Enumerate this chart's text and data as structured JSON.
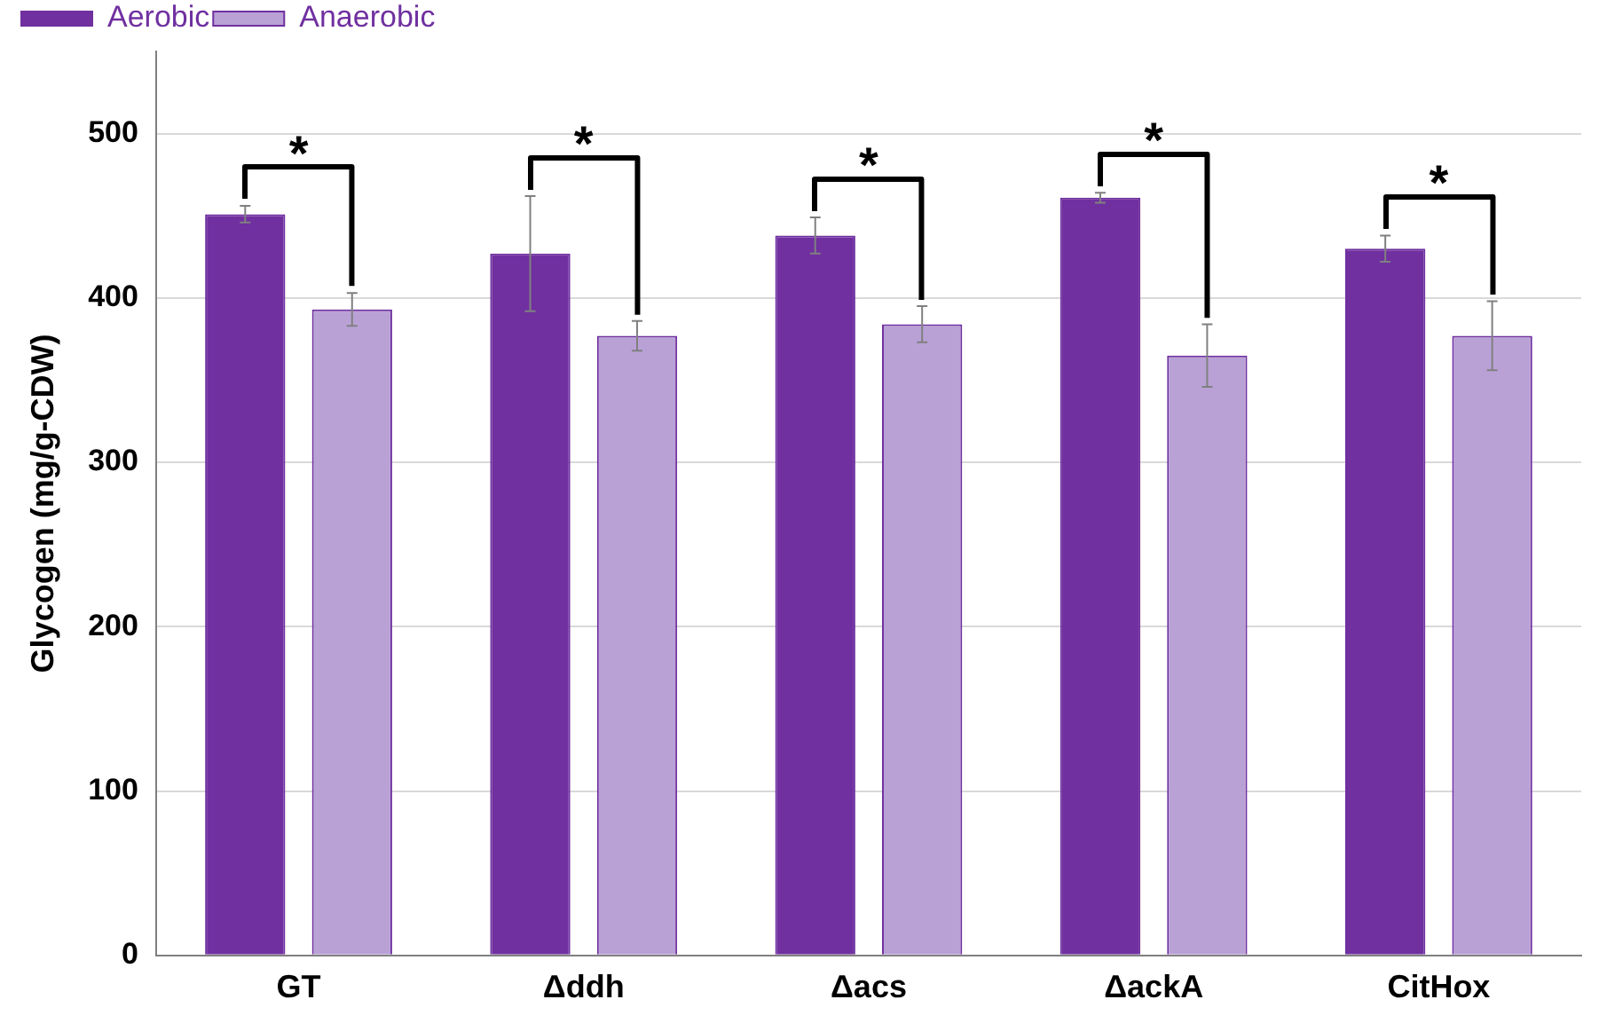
{
  "chart_data": {
    "type": "bar",
    "ylabel": "Glycogen (mg/g-CDW)",
    "categories": [
      "GT",
      "Δddh",
      "Δacs",
      "ΔackA",
      "CitHox"
    ],
    "series": [
      {
        "name": "Aerobic",
        "color": "#7030a0",
        "values": [
          451,
          427,
          438,
          461,
          430
        ],
        "errors": [
          5,
          35,
          11,
          3,
          8
        ]
      },
      {
        "name": "Anaerobic",
        "color": "#b9a1d6",
        "values": [
          393,
          377,
          384,
          365,
          377
        ],
        "errors": [
          10,
          9,
          11,
          19,
          21
        ]
      }
    ],
    "ylim": [
      0,
      550
    ],
    "yticks": [
      0,
      100,
      200,
      300,
      400,
      500
    ],
    "grid": "y",
    "legend": "top left",
    "annotations": [
      "*",
      "*",
      "*",
      "*",
      "*"
    ]
  }
}
